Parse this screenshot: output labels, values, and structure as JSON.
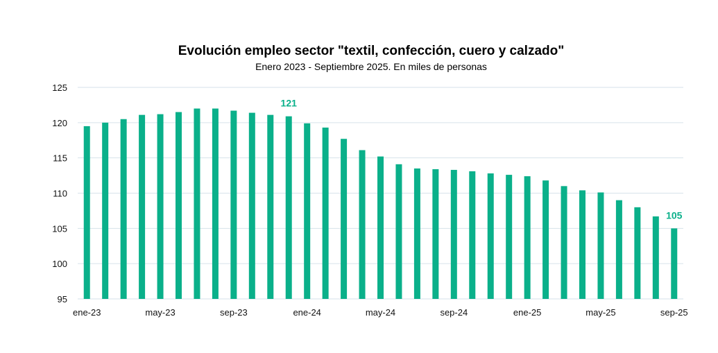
{
  "chart_data": {
    "type": "bar",
    "title": "Evolución empleo sector \"textil, confección, cuero y calzado\"",
    "subtitle": "Enero 2023 - Septiembre 2025. En miles de personas",
    "xlabel": "",
    "ylabel": "",
    "ylim": [
      95,
      125
    ],
    "yticks": [
      95,
      100,
      105,
      110,
      115,
      120,
      125
    ],
    "grid": true,
    "bar_color": "#0ab08a",
    "annotation_color": "#0ab08a",
    "x_tick_labels": [
      {
        "index": 0,
        "label": "ene-23"
      },
      {
        "index": 4,
        "label": "may-23"
      },
      {
        "index": 8,
        "label": "sep-23"
      },
      {
        "index": 12,
        "label": "ene-24"
      },
      {
        "index": 16,
        "label": "may-24"
      },
      {
        "index": 20,
        "label": "sep-24"
      },
      {
        "index": 24,
        "label": "ene-25"
      },
      {
        "index": 28,
        "label": "may-25"
      },
      {
        "index": 32,
        "label": "sep-25"
      }
    ],
    "categories": [
      "ene-23",
      "feb-23",
      "mar-23",
      "abr-23",
      "may-23",
      "jun-23",
      "jul-23",
      "ago-23",
      "sep-23",
      "oct-23",
      "nov-23",
      "dic-23",
      "ene-24",
      "feb-24",
      "mar-24",
      "abr-24",
      "may-24",
      "jun-24",
      "jul-24",
      "ago-24",
      "sep-24",
      "oct-24",
      "nov-24",
      "dic-24",
      "ene-25",
      "feb-25",
      "mar-25",
      "abr-25",
      "may-25",
      "jun-25",
      "jul-25",
      "ago-25",
      "sep-25"
    ],
    "values": [
      119.5,
      120.0,
      120.5,
      121.1,
      121.2,
      121.5,
      122.0,
      122.0,
      121.7,
      121.4,
      121.1,
      120.9,
      119.9,
      119.3,
      117.7,
      116.1,
      115.2,
      114.1,
      113.5,
      113.4,
      113.3,
      113.1,
      112.8,
      112.6,
      112.4,
      111.8,
      111.0,
      110.4,
      110.1,
      109.0,
      108.0,
      106.7,
      105.0
    ],
    "annotations": [
      {
        "index": 11,
        "text": "121"
      },
      {
        "index": 32,
        "text": "105"
      }
    ]
  }
}
